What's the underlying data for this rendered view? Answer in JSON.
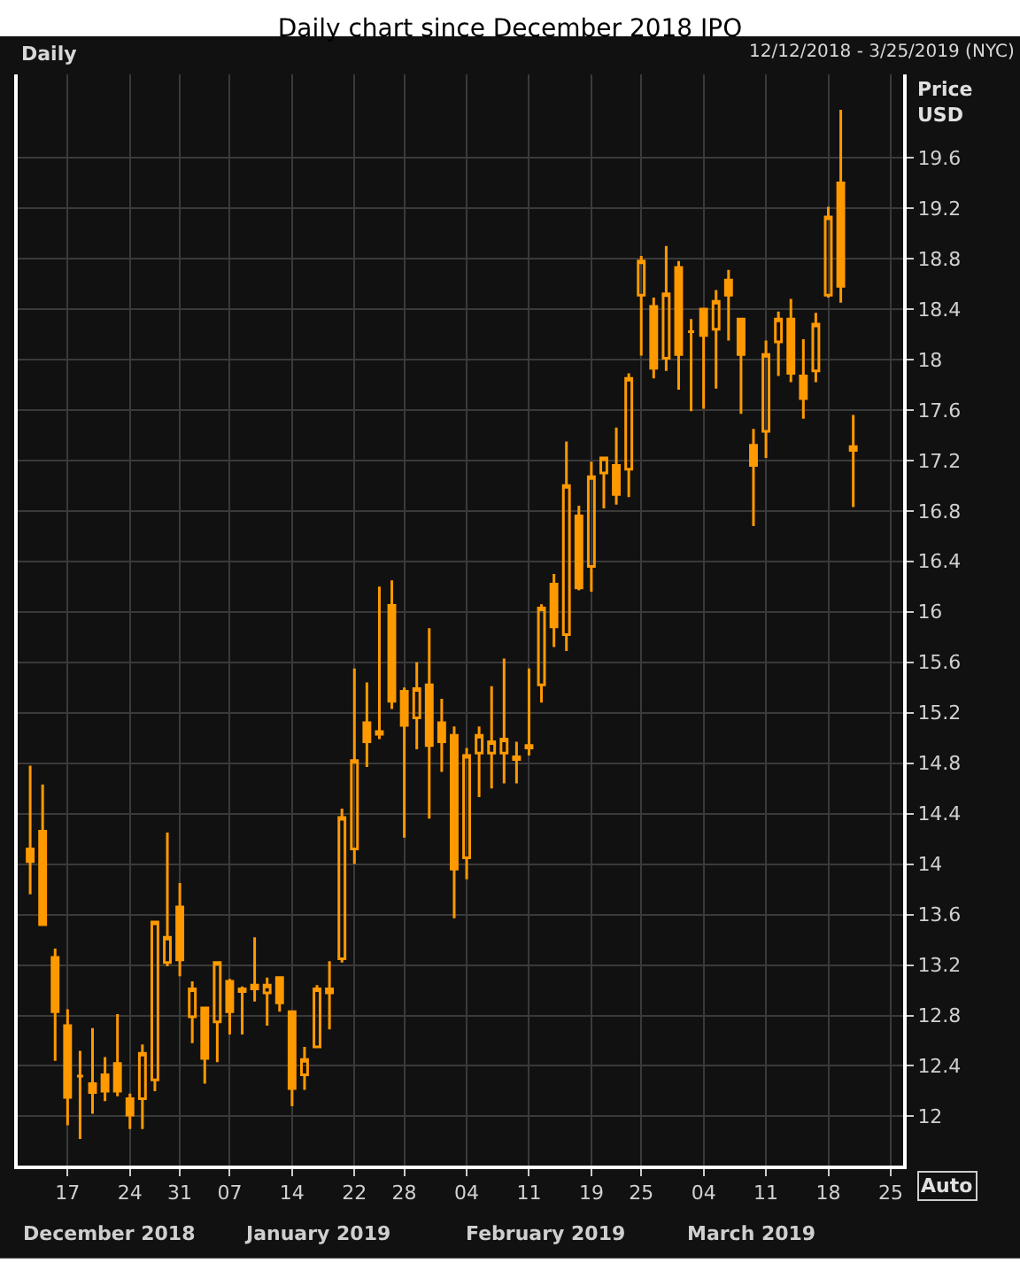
{
  "chart_data": {
    "type": "candlestick",
    "title": "Daily chart since December 2018 IPO",
    "ylabel": "Price\nUSD",
    "annotations": [
      "Daily",
      "12/12/2018 - 3/25/2019 (NYC)",
      "Auto",
      "December 2018",
      "January 2019",
      "February 2019",
      "March 2019"
    ],
    "categories": [
      null,
      null,
      null,
      "17",
      null,
      null,
      null,
      null,
      "24",
      null,
      null,
      null,
      "31",
      null,
      null,
      null,
      "07",
      null,
      null,
      null,
      null,
      "14",
      null,
      null,
      null,
      null,
      "22",
      null,
      null,
      null,
      "28",
      null,
      null,
      null,
      null,
      "04",
      null,
      null,
      null,
      null,
      "11",
      null,
      null,
      null,
      null,
      "19",
      null,
      null,
      null,
      "25",
      null,
      null,
      null,
      null,
      "04",
      null,
      null,
      null,
      null,
      "11",
      null,
      null,
      null,
      null,
      "18",
      null,
      null,
      null,
      null,
      "25"
    ],
    "ohlc": [
      [
        14.12,
        14.78,
        13.76,
        14.02
      ],
      [
        14.26,
        14.63,
        13.51,
        13.52
      ],
      [
        13.26,
        13.33,
        12.44,
        12.83
      ],
      [
        12.72,
        12.85,
        11.93,
        12.15
      ],
      [
        12.32,
        12.52,
        11.82,
        12.32
      ],
      [
        12.26,
        12.7,
        12.02,
        12.19
      ],
      [
        12.33,
        12.47,
        12.12,
        12.2
      ],
      [
        12.42,
        12.81,
        12.16,
        12.2
      ],
      [
        12.14,
        12.18,
        11.9,
        12.01
      ],
      [
        12.14,
        12.57,
        11.9,
        12.5
      ],
      [
        12.29,
        13.55,
        12.2,
        13.54
      ],
      [
        13.22,
        14.25,
        13.19,
        13.42
      ],
      [
        13.66,
        13.85,
        13.11,
        13.24
      ],
      [
        12.79,
        13.07,
        12.58,
        13.01
      ],
      [
        12.86,
        12.86,
        12.26,
        12.46
      ],
      [
        12.75,
        13.22,
        12.43,
        13.22
      ],
      [
        13.07,
        13.09,
        12.65,
        12.83
      ],
      [
        12.99,
        13.03,
        12.65,
        13.01
      ],
      [
        13.01,
        13.42,
        12.91,
        13.04
      ],
      [
        12.98,
        13.1,
        12.72,
        13.04
      ],
      [
        13.1,
        13.1,
        12.83,
        12.9
      ],
      [
        12.83,
        12.83,
        12.08,
        12.22
      ],
      [
        12.33,
        12.55,
        12.21,
        12.45
      ],
      [
        12.55,
        13.04,
        12.54,
        13.01
      ],
      [
        13.01,
        13.23,
        12.69,
        12.98
      ],
      [
        13.25,
        14.44,
        13.22,
        14.37
      ],
      [
        14.12,
        15.55,
        14.0,
        14.82
      ],
      [
        15.12,
        15.44,
        14.77,
        14.97
      ],
      [
        15.03,
        16.2,
        14.99,
        15.05
      ],
      [
        16.05,
        16.25,
        15.23,
        15.29
      ],
      [
        15.37,
        15.4,
        14.21,
        15.1
      ],
      [
        15.16,
        15.6,
        14.91,
        15.39
      ],
      [
        15.42,
        15.87,
        14.36,
        14.94
      ],
      [
        15.12,
        15.31,
        14.73,
        14.97
      ],
      [
        15.02,
        15.09,
        13.57,
        13.96
      ],
      [
        14.05,
        14.92,
        13.88,
        14.86
      ],
      [
        14.88,
        15.09,
        14.53,
        15.02
      ],
      [
        14.88,
        15.41,
        14.6,
        14.97
      ],
      [
        14.88,
        15.63,
        14.64,
        14.99
      ],
      [
        14.85,
        14.97,
        14.64,
        14.83
      ],
      [
        14.92,
        15.55,
        14.86,
        14.94
      ],
      [
        15.42,
        16.06,
        15.28,
        16.03
      ],
      [
        16.22,
        16.3,
        15.72,
        15.88
      ],
      [
        15.82,
        17.35,
        15.69,
        17.0
      ],
      [
        16.76,
        16.84,
        16.17,
        16.19
      ],
      [
        16.36,
        17.19,
        16.16,
        17.07
      ],
      [
        17.1,
        17.23,
        16.82,
        17.22
      ],
      [
        17.16,
        17.46,
        16.85,
        16.93
      ],
      [
        17.13,
        17.89,
        16.91,
        17.85
      ],
      [
        18.51,
        18.82,
        18.03,
        18.78
      ],
      [
        18.42,
        18.49,
        17.85,
        17.93
      ],
      [
        18.01,
        18.9,
        17.91,
        18.52
      ],
      [
        18.73,
        18.78,
        17.76,
        18.04
      ],
      [
        18.22,
        18.32,
        17.59,
        18.22
      ],
      [
        18.4,
        18.4,
        17.61,
        18.19
      ],
      [
        18.24,
        18.55,
        17.77,
        18.46
      ],
      [
        18.63,
        18.71,
        18.15,
        18.51
      ],
      [
        18.32,
        18.32,
        17.57,
        18.04
      ],
      [
        17.32,
        17.45,
        16.68,
        17.16
      ],
      [
        17.43,
        18.15,
        17.22,
        18.04
      ],
      [
        18.14,
        18.38,
        17.87,
        18.32
      ],
      [
        18.32,
        18.48,
        17.82,
        17.89
      ],
      [
        17.87,
        18.16,
        17.53,
        17.69
      ],
      [
        17.91,
        18.37,
        17.82,
        18.28
      ],
      [
        18.51,
        19.21,
        18.49,
        19.13
      ],
      [
        19.4,
        19.98,
        18.45,
        18.58
      ],
      [
        17.31,
        17.56,
        16.83,
        17.28
      ],
      null,
      null,
      null
    ],
    "color": "#ff9900",
    "ylim": [
      11.61,
      20.26
    ],
    "yticks": [
      12,
      12.4,
      12.8,
      13.2,
      13.6,
      14,
      14.4,
      14.8,
      15.2,
      15.6,
      16,
      16.4,
      16.8,
      17.2,
      17.6,
      18,
      18.4,
      18.8,
      19.2,
      19.6
    ],
    "grid": true
  }
}
